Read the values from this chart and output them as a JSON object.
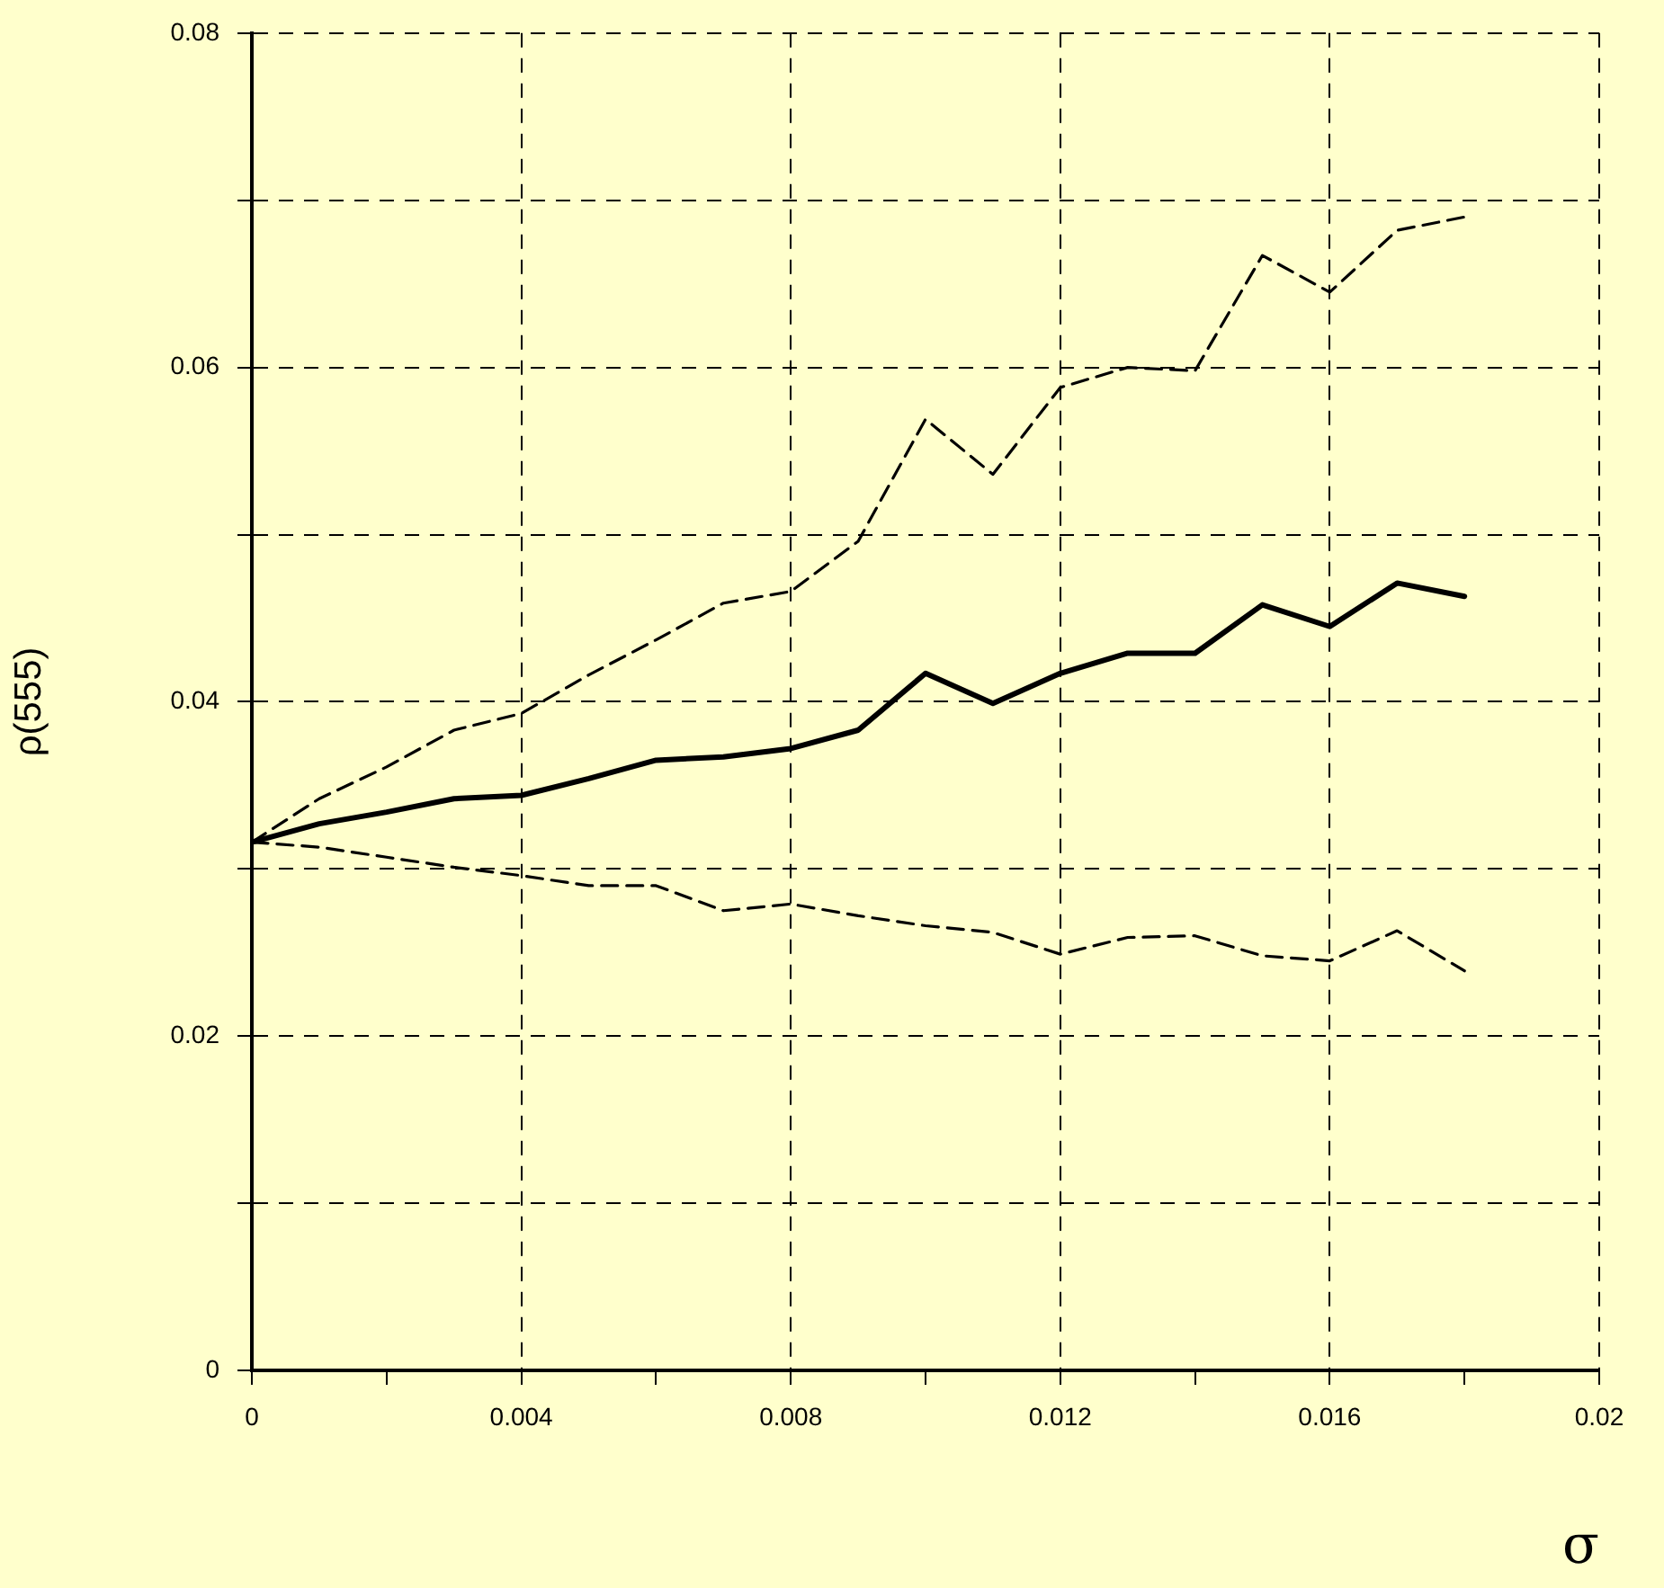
{
  "chart_data": {
    "type": "line",
    "xlabel": "σ",
    "ylabel": "ρ(555)",
    "x": [
      0,
      0.001,
      0.002,
      0.003,
      0.004,
      0.005,
      0.006,
      0.007,
      0.008,
      0.009,
      0.01,
      0.011,
      0.012,
      0.013,
      0.014,
      0.015,
      0.016,
      0.017,
      0.018
    ],
    "series": [
      {
        "color": "#000000",
        "line_style": "dashed",
        "values": [
          0.0316,
          0.0342,
          0.0361,
          0.0383,
          0.0393,
          0.0416,
          0.0437,
          0.0459,
          0.0466,
          0.0496,
          0.0569,
          0.0536,
          0.0588,
          0.06,
          0.0598,
          0.0667,
          0.0645,
          0.0682,
          0.069
        ]
      },
      {
        "color": "#000000",
        "line_style": "solid",
        "values": [
          0.0316,
          0.0327,
          0.0334,
          0.0342,
          0.0344,
          0.0354,
          0.0365,
          0.0367,
          0.0372,
          0.0383,
          0.0417,
          0.0399,
          0.0417,
          0.0429,
          0.0429,
          0.0458,
          0.0445,
          0.0471,
          0.0463
        ]
      },
      {
        "color": "#000000",
        "line_style": "dashed",
        "values": [
          0.0316,
          0.0313,
          0.0307,
          0.0301,
          0.0296,
          0.029,
          0.029,
          0.0275,
          0.0279,
          0.0272,
          0.0266,
          0.0262,
          0.0249,
          0.0259,
          0.026,
          0.0248,
          0.0245,
          0.0263,
          0.0239
        ]
      }
    ],
    "xlim": [
      0,
      0.02
    ],
    "xticks": [
      0,
      {
        "value": 0.002,
        "label": null
      },
      0.004,
      {
        "value": 0.006,
        "label": null
      },
      0.008,
      {
        "value": 0.01,
        "label": null
      },
      0.012,
      {
        "value": 0.014,
        "label": null
      },
      0.016,
      {
        "value": 0.018,
        "label": null
      },
      0.02
    ],
    "ylim": [
      0,
      0.08
    ],
    "yticks": [
      0,
      {
        "value": 0.01,
        "label": null
      },
      0.02,
      {
        "value": 0.03,
        "label": null
      },
      0.04,
      {
        "value": 0.05,
        "label": null
      },
      0.06,
      {
        "value": 0.07,
        "label": null
      },
      0.08
    ],
    "grid": true,
    "legend": false,
    "marker": "none"
  }
}
